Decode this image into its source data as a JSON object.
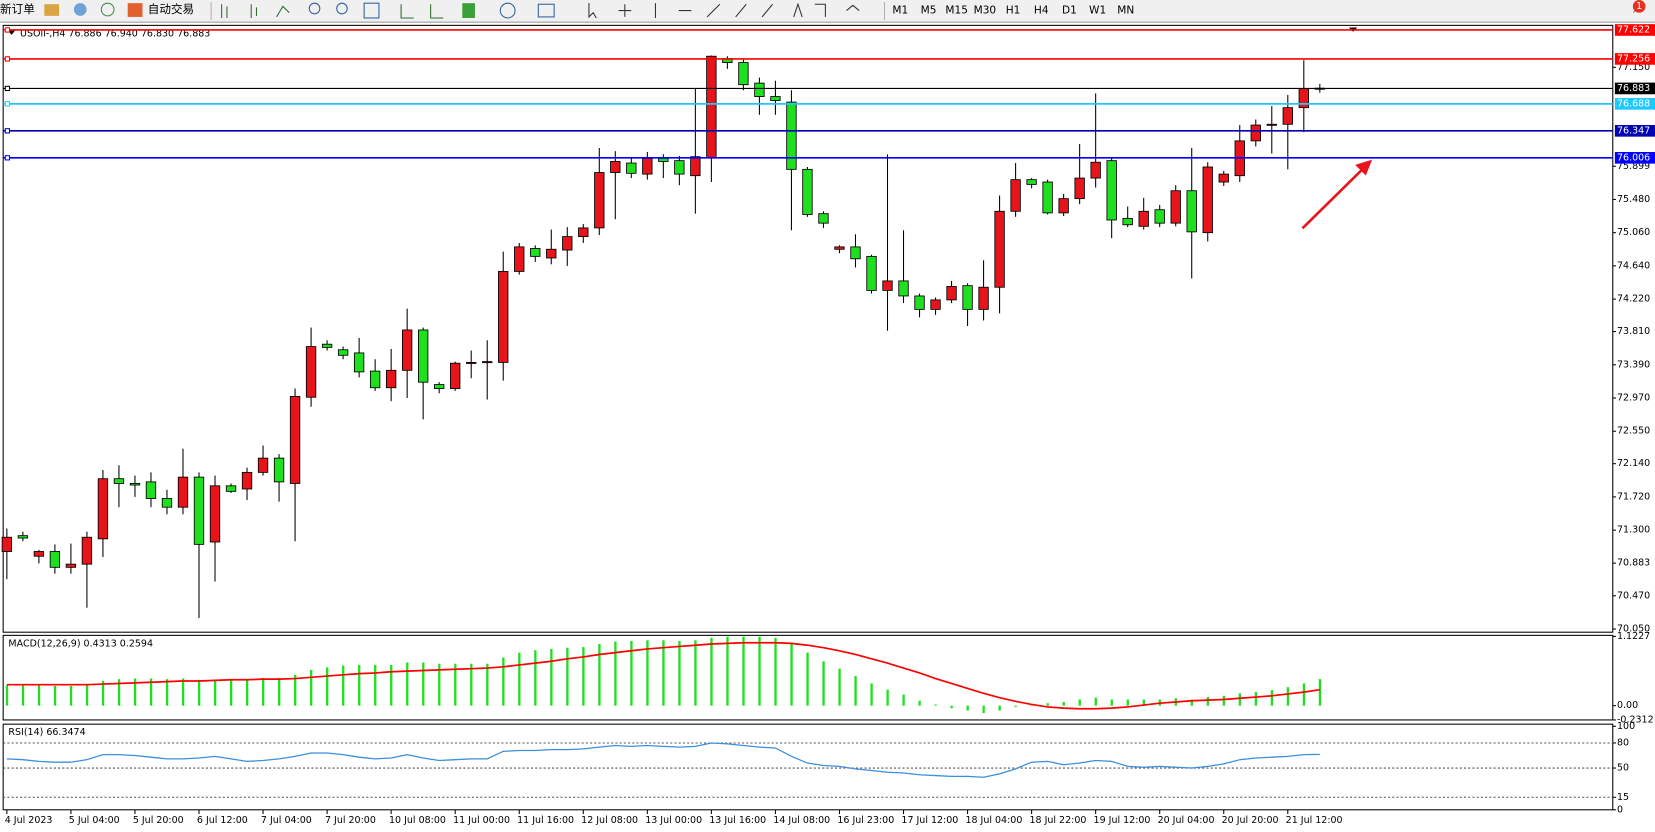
{
  "toolbar": {
    "new_order": "新订单",
    "auto_trading": "自动交易",
    "timeframes": [
      "M1",
      "M5",
      "M15",
      "M30",
      "H1",
      "H4",
      "D1",
      "W1",
      "MN"
    ],
    "notification_count": "1"
  },
  "chart_window": {
    "header": "USOil-,H4  76.886 76.940 76.830 76.883",
    "price_chart": {
      "type": "candlestick",
      "up_color": "#e8141c",
      "down_color": "#1ee01e",
      "categories": [
        "4 Jul 2023",
        null,
        null,
        null,
        "5 Jul 04:00",
        null,
        null,
        null,
        "5 Jul 20:00",
        null,
        null,
        null,
        "6 Jul 12:00",
        null,
        null,
        null,
        "7 Jul 04:00",
        null,
        null,
        null,
        "7 Jul 20:00",
        null,
        null,
        null,
        "10 Jul 08:00",
        null,
        null,
        null,
        "11 Jul 00:00",
        null,
        null,
        null,
        "11 Jul 16:00",
        null,
        null,
        null,
        "12 Jul 08:00",
        null,
        null,
        null,
        "13 Jul 00:00",
        null,
        null,
        null,
        "13 Jul 16:00",
        null,
        null,
        null,
        "14 Jul 08:00",
        null,
        null,
        null,
        "16 Jul 23:00",
        null,
        null,
        null,
        "17 Jul 12:00",
        null,
        null,
        null,
        "18 Jul 04:00",
        null,
        null,
        null,
        "18 Jul 22:00",
        null,
        null,
        null,
        "19 Jul 12:00",
        null,
        null,
        null,
        "20 Jul 04:00",
        null,
        null,
        null,
        "20 Jul 20:00",
        null,
        null,
        null,
        "21 Jul 12:00",
        null,
        null
      ],
      "open": [
        71.03,
        71.23,
        70.97,
        71.03,
        70.83,
        70.87,
        71.19,
        71.95,
        71.89,
        71.91,
        71.7,
        71.59,
        71.97,
        71.15,
        71.86,
        71.82,
        72.03,
        72.21,
        71.89,
        72.98,
        73.65,
        73.58,
        73.54,
        73.31,
        73.1,
        73.32,
        73.83,
        73.14,
        73.09,
        73.41,
        73.42,
        73.42,
        74.57,
        74.86,
        74.74,
        74.84,
        75.01,
        75.12,
        75.82,
        75.94,
        75.8,
        76.0,
        75.97,
        75.78,
        76.01,
        77.26,
        77.21,
        76.95,
        76.78,
        76.71,
        75.86,
        75.3,
        74.85,
        74.88,
        74.76,
        74.33,
        74.45,
        74.26,
        74.09,
        74.21,
        74.39,
        74.09,
        74.37,
        75.33,
        75.73,
        75.7,
        75.31,
        75.49,
        75.75,
        75.97,
        75.24,
        75.14,
        75.35,
        75.18,
        75.59,
        75.06,
        75.7,
        75.78,
        76.22,
        76.42,
        76.43,
        76.64,
        76.886
      ],
      "high": [
        71.32,
        71.28,
        71.05,
        71.12,
        71.13,
        71.28,
        72.06,
        72.12,
        71.99,
        72.03,
        71.81,
        72.33,
        72.03,
        71.99,
        71.89,
        72.09,
        72.37,
        72.26,
        73.09,
        73.86,
        73.7,
        73.62,
        73.73,
        73.46,
        73.59,
        74.1,
        73.86,
        73.17,
        73.43,
        73.57,
        73.7,
        74.82,
        74.93,
        74.9,
        75.1,
        75.13,
        75.17,
        76.13,
        76.09,
        76.0,
        76.08,
        76.05,
        76.03,
        76.88,
        77.3,
        77.29,
        77.25,
        77.02,
        76.98,
        76.86,
        75.89,
        75.33,
        74.9,
        75.04,
        74.78,
        76.05,
        75.09,
        74.29,
        74.24,
        74.45,
        74.42,
        74.71,
        75.53,
        75.94,
        75.75,
        75.73,
        75.55,
        76.18,
        76.82,
        76.0,
        75.39,
        75.5,
        75.41,
        75.66,
        76.13,
        75.95,
        75.84,
        76.42,
        76.49,
        76.66,
        76.8,
        77.24,
        76.94
      ],
      "low": [
        70.68,
        71.16,
        70.88,
        70.75,
        70.75,
        70.32,
        70.96,
        71.59,
        71.72,
        71.59,
        71.5,
        71.5,
        70.19,
        70.65,
        71.77,
        71.68,
        71.99,
        71.66,
        71.16,
        72.86,
        73.57,
        73.46,
        73.23,
        73.06,
        72.93,
        72.97,
        72.7,
        73.03,
        73.06,
        73.22,
        72.95,
        73.19,
        74.53,
        74.69,
        74.66,
        74.64,
        74.93,
        75.03,
        75.23,
        75.75,
        75.73,
        75.75,
        75.66,
        75.3,
        75.7,
        77.13,
        76.86,
        76.55,
        76.55,
        75.09,
        75.26,
        75.12,
        74.8,
        74.62,
        74.29,
        73.82,
        74.17,
        73.99,
        74.02,
        74.17,
        73.88,
        73.95,
        74.04,
        75.26,
        75.62,
        75.29,
        75.27,
        75.42,
        75.63,
        74.99,
        75.13,
        75.1,
        75.13,
        75.14,
        74.48,
        74.95,
        75.65,
        75.7,
        76.15,
        76.06,
        75.86,
        76.33,
        76.83
      ],
      "close": [
        71.21,
        71.2,
        71.03,
        70.83,
        70.87,
        71.21,
        71.95,
        71.89,
        71.87,
        71.7,
        71.59,
        71.97,
        71.12,
        71.86,
        71.79,
        72.03,
        72.21,
        71.91,
        72.99,
        73.62,
        73.61,
        73.51,
        73.3,
        73.1,
        73.32,
        73.83,
        73.17,
        73.09,
        73.41,
        73.42,
        73.43,
        74.57,
        74.88,
        74.76,
        74.85,
        75.01,
        75.12,
        75.82,
        75.96,
        75.81,
        76.0,
        75.96,
        75.8,
        76.02,
        77.29,
        77.21,
        76.93,
        76.78,
        76.73,
        75.86,
        75.29,
        75.18,
        74.88,
        74.73,
        74.33,
        74.45,
        74.26,
        74.09,
        74.21,
        74.38,
        74.09,
        74.37,
        75.33,
        75.73,
        75.67,
        75.31,
        75.49,
        75.75,
        75.95,
        75.22,
        75.16,
        75.33,
        75.18,
        75.59,
        75.07,
        75.89,
        75.8,
        76.22,
        76.42,
        76.43,
        76.64,
        76.88,
        76.883
      ],
      "ylim": [
        70.01,
        77.68
      ],
      "yticks": [
        {
          "value": 77.15,
          "label": "77.150"
        },
        75.899,
        {
          "value": 75.48,
          "label": "75.480"
        },
        {
          "value": 75.06,
          "label": "75.060"
        },
        {
          "value": 74.64,
          "label": "74.640"
        },
        {
          "value": 74.22,
          "label": "74.220"
        },
        {
          "value": 73.81,
          "label": "73.810"
        },
        {
          "value": 73.39,
          "label": "73.390"
        },
        {
          "value": 72.97,
          "label": "72.970"
        },
        {
          "value": 72.55,
          "label": "72.550"
        },
        {
          "value": 72.14,
          "label": "72.140"
        },
        {
          "value": 71.72,
          "label": "71.720"
        },
        {
          "value": 71.3,
          "label": "71.300"
        },
        70.883,
        {
          "value": 70.47,
          "label": "70.470"
        },
        {
          "value": 70.05,
          "label": "70.050"
        }
      ],
      "levels": [
        {
          "value": 77.622,
          "color": "#ff0000"
        },
        {
          "value": 77.256,
          "color": "#ff0000"
        },
        {
          "value": 76.883,
          "color": "#000000"
        },
        {
          "value": 76.688,
          "color": "#1ec8ff"
        },
        {
          "value": 76.347,
          "color": "#0000b4"
        },
        {
          "value": 76.006,
          "color": "#0000ff"
        }
      ]
    },
    "macd": {
      "label": "MACD(12,26,9) 0.4313 0.2594",
      "ylim": [
        -0.2312,
        1.1227
      ],
      "yticks": [
        1.1227,
        {
          "value": 0,
          "label": "0.00"
        },
        -0.2312
      ],
      "histogram_color": "#1ee01e",
      "signal_color": "#ff0000",
      "histogram": [
        0.33,
        0.33,
        0.33,
        0.32,
        0.32,
        0.33,
        0.4,
        0.43,
        0.44,
        0.44,
        0.43,
        0.44,
        0.42,
        0.42,
        0.43,
        0.43,
        0.45,
        0.45,
        0.5,
        0.58,
        0.62,
        0.65,
        0.66,
        0.66,
        0.66,
        0.7,
        0.7,
        0.68,
        0.68,
        0.68,
        0.68,
        0.78,
        0.86,
        0.9,
        0.92,
        0.94,
        0.95,
        1.0,
        1.04,
        1.05,
        1.06,
        1.06,
        1.05,
        1.06,
        1.1,
        1.12,
        1.12,
        1.12,
        1.1,
        1.0,
        0.86,
        0.72,
        0.6,
        0.48,
        0.36,
        0.26,
        0.18,
        0.08,
        0.02,
        -0.04,
        -0.08,
        -0.12,
        -0.08,
        -0.02,
        0.02,
        0.04,
        0.06,
        0.1,
        0.13,
        0.1,
        0.1,
        0.1,
        0.1,
        0.12,
        0.1,
        0.14,
        0.16,
        0.2,
        0.22,
        0.25,
        0.3,
        0.36,
        0.4313
      ],
      "signal": [
        0.34,
        0.34,
        0.34,
        0.34,
        0.34,
        0.34,
        0.35,
        0.36,
        0.37,
        0.38,
        0.39,
        0.4,
        0.4,
        0.41,
        0.42,
        0.42,
        0.43,
        0.43,
        0.44,
        0.46,
        0.48,
        0.5,
        0.52,
        0.53,
        0.55,
        0.56,
        0.57,
        0.58,
        0.59,
        0.6,
        0.61,
        0.63,
        0.66,
        0.69,
        0.72,
        0.76,
        0.79,
        0.83,
        0.86,
        0.89,
        0.92,
        0.94,
        0.96,
        0.98,
        1.0,
        1.01,
        1.02,
        1.02,
        1.02,
        1.01,
        0.98,
        0.94,
        0.89,
        0.83,
        0.76,
        0.69,
        0.61,
        0.53,
        0.44,
        0.36,
        0.28,
        0.2,
        0.13,
        0.07,
        0.02,
        -0.02,
        -0.04,
        -0.05,
        -0.05,
        -0.04,
        -0.02,
        0.01,
        0.04,
        0.06,
        0.08,
        0.09,
        0.1,
        0.12,
        0.14,
        0.16,
        0.19,
        0.22,
        0.2594
      ]
    },
    "rsi": {
      "label": "RSI(14) 66.3474",
      "ylim": [
        0,
        100
      ],
      "yticks": [
        100,
        80,
        50,
        15,
        0
      ],
      "dashed_levels": [
        80,
        50,
        15
      ],
      "color": "#3a8fdc",
      "values": [
        61,
        60,
        58,
        57,
        57,
        60,
        66,
        66,
        65,
        63,
        61,
        61,
        62,
        64,
        61,
        58,
        59,
        61,
        64,
        68,
        68,
        66,
        63,
        61,
        62,
        66,
        62,
        59,
        60,
        61,
        61,
        70,
        71,
        71,
        72,
        72,
        73,
        75,
        77,
        76,
        77,
        76,
        75,
        76,
        80,
        79,
        77,
        75,
        74,
        64,
        56,
        53,
        52,
        49,
        47,
        45,
        44,
        42,
        41,
        40,
        40,
        39,
        43,
        49,
        57,
        58,
        54,
        56,
        59,
        58,
        52,
        51,
        52,
        51,
        50,
        52,
        55,
        60,
        62,
        63,
        64,
        66,
        66.3474
      ]
    }
  }
}
